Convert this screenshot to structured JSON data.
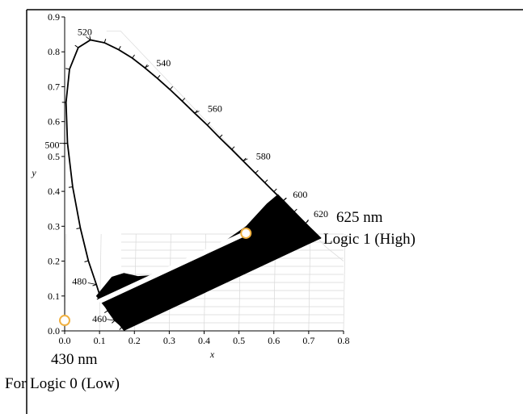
{
  "chart_data": {
    "type": "scatter",
    "title": "",
    "xlabel": "x",
    "ylabel": "y",
    "xlim": [
      0.0,
      0.8
    ],
    "ylim": [
      0.0,
      0.9
    ],
    "x_ticks": [
      "0.0",
      "0.1",
      "0.2",
      "0.3",
      "0.4",
      "0.5",
      "0.6",
      "0.7",
      "0.8"
    ],
    "y_ticks": [
      "0.0",
      "0.1",
      "0.2",
      "0.3",
      "0.4",
      "0.5",
      "0.6",
      "0.7",
      "0.8",
      "0.9"
    ],
    "grid": true,
    "locus": [
      {
        "label": "460",
        "x": 0.144,
        "y": 0.03
      },
      {
        "label": "480",
        "x": 0.091,
        "y": 0.133
      },
      {
        "label": "500",
        "x": 0.008,
        "y": 0.538
      },
      {
        "label": "520",
        "x": 0.074,
        "y": 0.834
      },
      {
        "label": "540",
        "x": 0.23,
        "y": 0.754
      },
      {
        "label": "560",
        "x": 0.373,
        "y": 0.624
      },
      {
        "label": "580",
        "x": 0.512,
        "y": 0.487
      },
      {
        "label": "600",
        "x": 0.627,
        "y": 0.373
      },
      {
        "label": "620",
        "x": 0.691,
        "y": 0.308
      }
    ],
    "points": [
      {
        "name": "625 nm",
        "label": "Logic 1 (High)",
        "x": 0.52,
        "y": 0.28
      },
      {
        "name": "430 nm",
        "label": "For Logic 0 (Low)",
        "x": 0.0,
        "y": 0.03
      }
    ],
    "colors": {
      "region_fill": "#000000",
      "line": "#ffffff",
      "marker_fill": "#ffffff",
      "marker_stroke": "#f0b040",
      "locus_stroke": "#000000"
    }
  },
  "annotations": {
    "high_nm": "625 nm",
    "high_label": "Logic 1 (High)",
    "low_nm": "430 nm",
    "low_label": "For Logic 0 (Low)"
  }
}
